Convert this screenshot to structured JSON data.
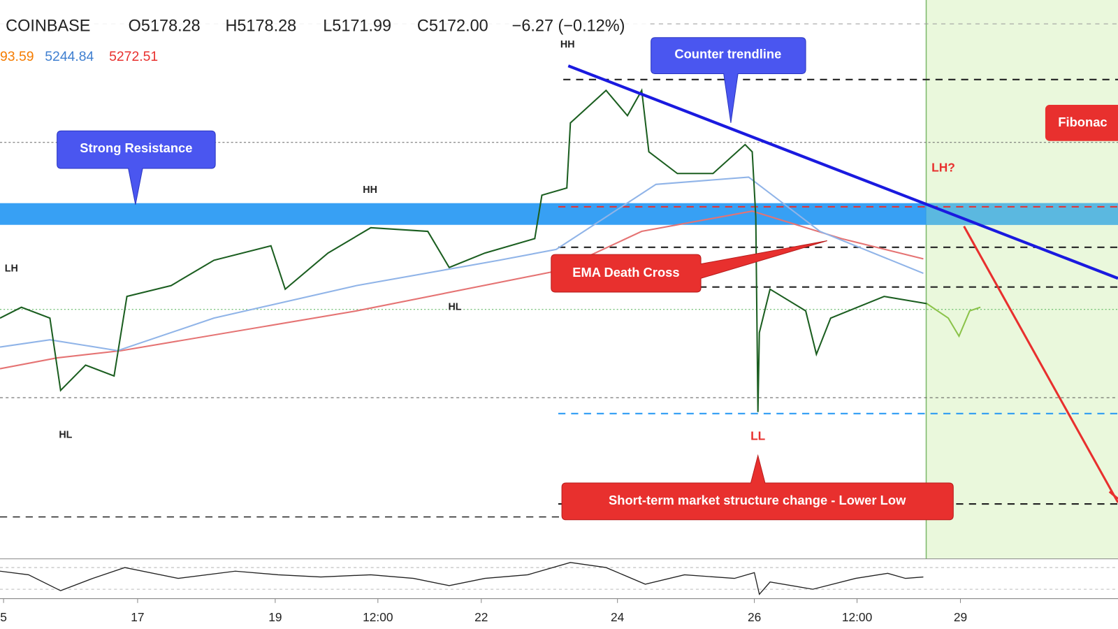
{
  "header": {
    "exchange": "COINBASE",
    "open": "O5178.28",
    "high": "H5178.28",
    "low": "L5171.99",
    "close": "C5172.00",
    "change": "−6.27 (−0.12%)"
  },
  "indicators": {
    "ema_fast": "93.59",
    "ema_mid": "5244.84",
    "ema_slow": "5272.51"
  },
  "annotations": {
    "counter_trendline": "Counter trendline",
    "strong_resistance": "Strong Resistance",
    "death_cross": "EMA Death Cross",
    "structure_change": "Short-term market structure change - Lower Low",
    "fibonacci": "Fibonac"
  },
  "swing_labels": {
    "hh_top": "HH",
    "hh_mid": "HH",
    "lh_left": "LH",
    "hl_mid": "HL",
    "hl_left": "HL",
    "ll": "LL",
    "lh_question": "LH?"
  },
  "x_axis": [
    "5",
    "17",
    "19",
    "12:00",
    "22",
    "24",
    "26",
    "12:00",
    "29"
  ]
}
